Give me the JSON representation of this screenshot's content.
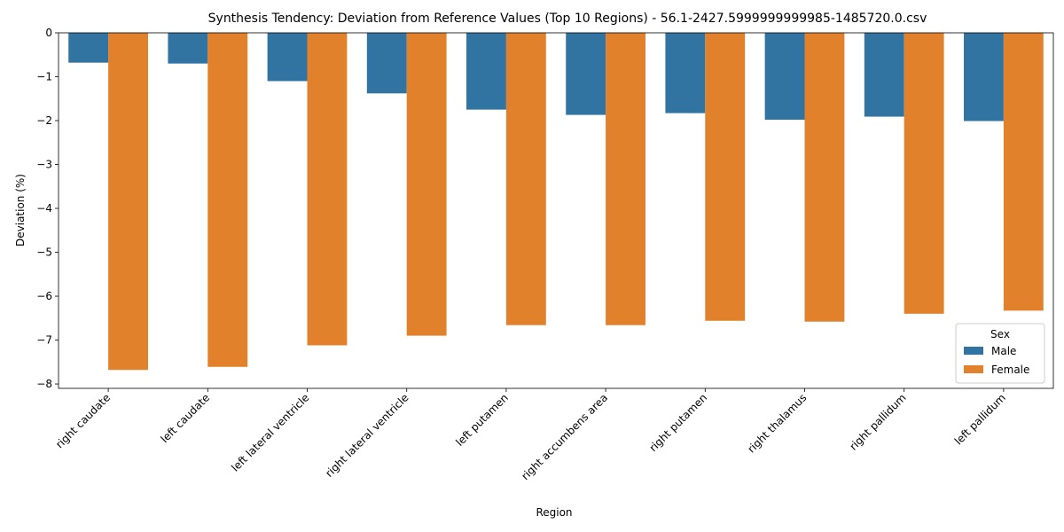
{
  "chart_data": {
    "type": "bar",
    "title": "Synthesis Tendency: Deviation from Reference Values (Top 10 Regions) - 56.1-2427.5999999999985-1485720.0.csv",
    "xlabel": "Region",
    "ylabel": "Deviation (%)",
    "ylim": [
      -8.1,
      0
    ],
    "yticks": [
      0,
      -1,
      -2,
      -3,
      -4,
      -5,
      -6,
      -7,
      -8
    ],
    "ytick_labels": [
      "0",
      "−1",
      "−2",
      "−3",
      "−4",
      "−5",
      "−6",
      "−7",
      "−8"
    ],
    "grid": false,
    "legend": {
      "title": "Sex",
      "placement": "lower-right"
    },
    "categories": [
      "right caudate",
      "left caudate",
      "left lateral ventricle",
      "right lateral ventricle",
      "left putamen",
      "right accumbens area",
      "right putamen",
      "right thalamus",
      "right pallidum",
      "left pallidum"
    ],
    "series": [
      {
        "name": "Male",
        "color": "#3274a1",
        "values": [
          -0.68,
          -0.7,
          -1.1,
          -1.38,
          -1.75,
          -1.87,
          -1.83,
          -1.98,
          -1.91,
          -2.01
        ]
      },
      {
        "name": "Female",
        "color": "#e1812c",
        "values": [
          -7.68,
          -7.61,
          -7.12,
          -6.9,
          -6.66,
          -6.66,
          -6.56,
          -6.58,
          -6.4,
          -6.33
        ]
      }
    ]
  }
}
